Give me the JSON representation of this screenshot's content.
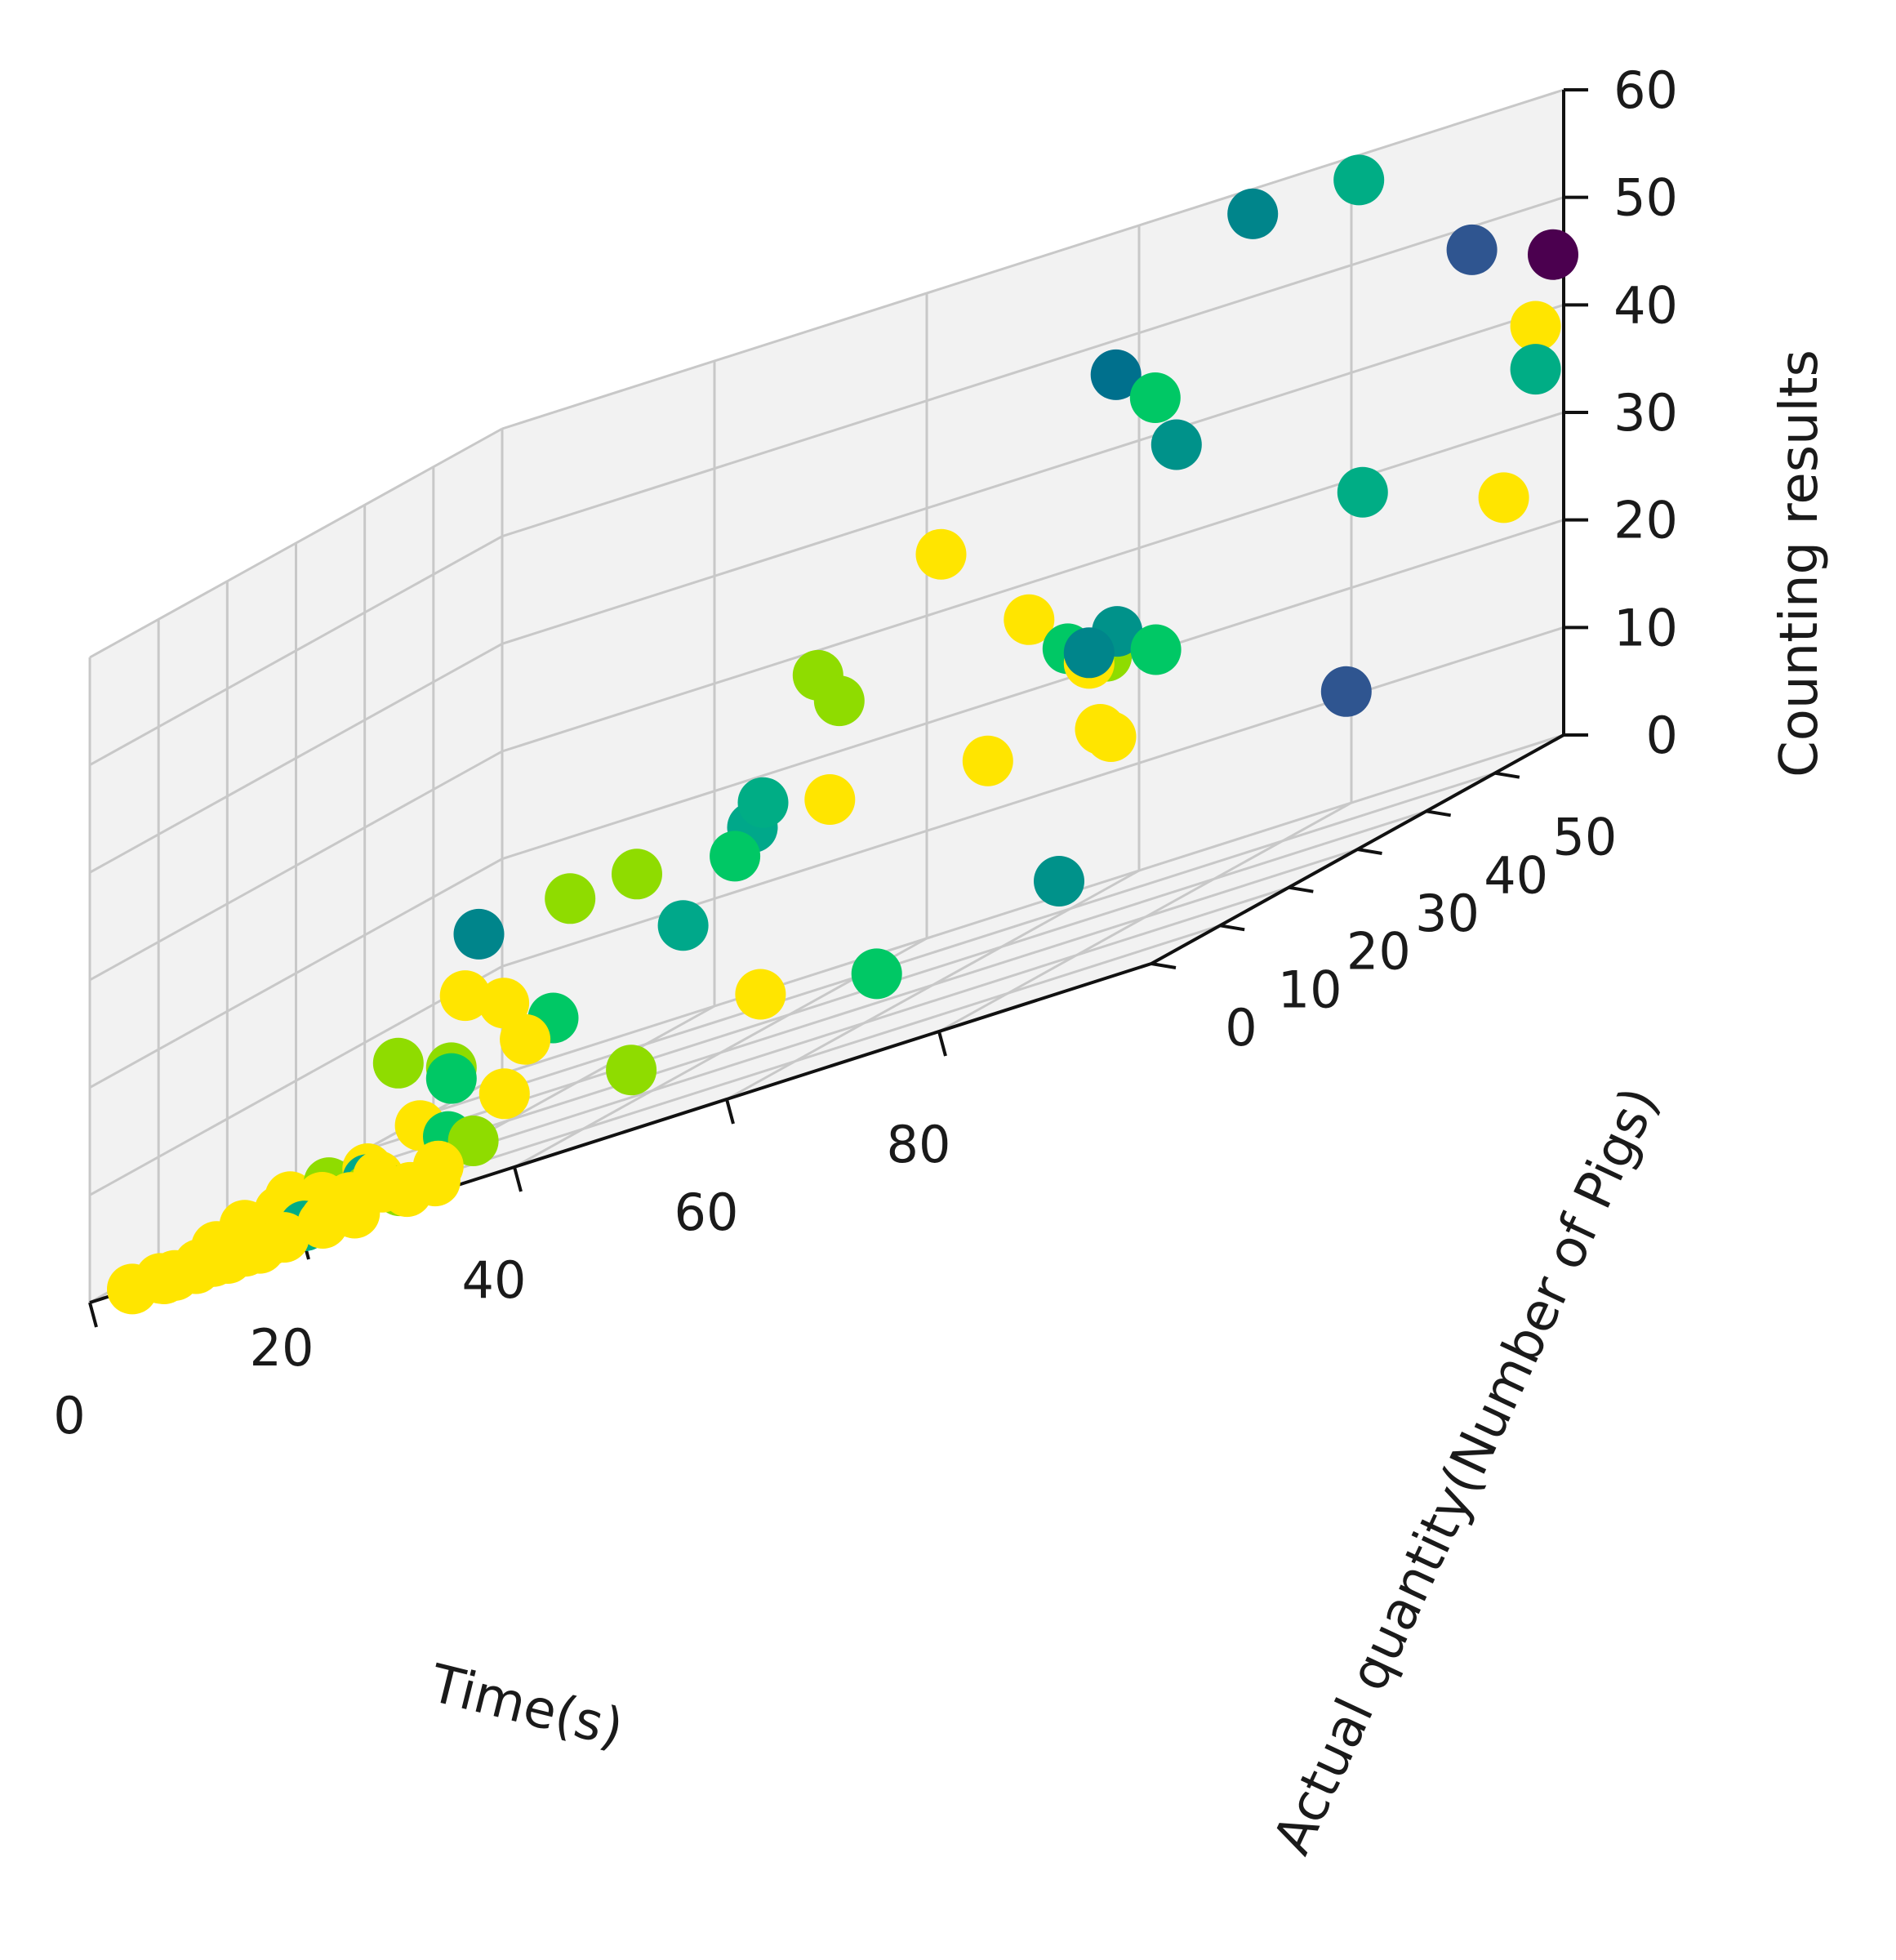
{
  "chart_data": {
    "type": "scatter",
    "projection": "3d",
    "xlabel": "Time(s)",
    "ylabel": "Actual quantity(Number of Pigs)",
    "zlabel": "Counting results",
    "xlim": [
      0,
      100
    ],
    "ylim": [
      0,
      60
    ],
    "zlim": [
      0,
      60
    ],
    "xticks": [
      0,
      20,
      40,
      60,
      80
    ],
    "yticks": [
      0,
      10,
      20,
      30,
      40,
      50
    ],
    "zticks": [
      0,
      10,
      20,
      30,
      40,
      50,
      60
    ],
    "grid": true,
    "pane_color": "#f2f2f2",
    "grid_color": "#c8c8c8",
    "colormap": "viridis",
    "points": [
      {
        "x": 72,
        "y": 58,
        "z": 58,
        "color": "#00858b"
      },
      {
        "x": 82,
        "y": 58,
        "z": 58,
        "color": "#00ad85"
      },
      {
        "x": 63,
        "y": 52,
        "z": 48,
        "color": "#00708d"
      },
      {
        "x": 92,
        "y": 59,
        "z": 48,
        "color": "#2f5590"
      },
      {
        "x": 68,
        "y": 50,
        "z": 45,
        "color": "#00c865"
      },
      {
        "x": 99,
        "y": 60,
        "z": 45,
        "color": "#4b004f"
      },
      {
        "x": 53,
        "y": 42,
        "z": 38,
        "color": "#ffe500"
      },
      {
        "x": 70,
        "y": 50,
        "z": 40,
        "color": "#00928a"
      },
      {
        "x": 98,
        "y": 59,
        "z": 39,
        "color": "#ffe500"
      },
      {
        "x": 98,
        "y": 59,
        "z": 35,
        "color": "#00ad85"
      },
      {
        "x": 44,
        "y": 38,
        "z": 31,
        "color": "#8fdc00"
      },
      {
        "x": 46,
        "y": 38,
        "z": 28,
        "color": "#8fdc00"
      },
      {
        "x": 60,
        "y": 44,
        "z": 29,
        "color": "#ffe500"
      },
      {
        "x": 83,
        "y": 57,
        "z": 29,
        "color": "#00ad85"
      },
      {
        "x": 95,
        "y": 59,
        "z": 24,
        "color": "#ffe500"
      },
      {
        "x": 63,
        "y": 45,
        "z": 25,
        "color": "#00c865"
      },
      {
        "x": 67,
        "y": 46,
        "z": 25,
        "color": "#00928a"
      },
      {
        "x": 65,
        "y": 45,
        "z": 23,
        "color": "#ffe500"
      },
      {
        "x": 66,
        "y": 46,
        "z": 23,
        "color": "#8fdc00"
      },
      {
        "x": 70,
        "y": 47,
        "z": 22,
        "color": "#00c865"
      },
      {
        "x": 65,
        "y": 45,
        "z": 24,
        "color": "#00858b"
      },
      {
        "x": 44,
        "y": 30,
        "z": 22,
        "color": "#00ad85"
      },
      {
        "x": 43,
        "y": 30,
        "z": 20,
        "color": "#00a88a"
      },
      {
        "x": 49,
        "y": 32,
        "z": 20,
        "color": "#ffe500"
      },
      {
        "x": 60,
        "y": 38,
        "z": 18,
        "color": "#ffe500"
      },
      {
        "x": 68,
        "y": 42,
        "z": 17,
        "color": "#ffe500"
      },
      {
        "x": 69,
        "y": 42,
        "z": 16,
        "color": "#ffe500"
      },
      {
        "x": 86,
        "y": 50,
        "z": 12,
        "color": "#2f5590"
      },
      {
        "x": 42,
        "y": 29,
        "z": 18,
        "color": "#00c865"
      },
      {
        "x": 36,
        "y": 24,
        "z": 20,
        "color": "#8fdc00"
      },
      {
        "x": 31,
        "y": 22,
        "z": 20,
        "color": "#8fdc00"
      },
      {
        "x": 25,
        "y": 18,
        "z": 20,
        "color": "#00858b"
      },
      {
        "x": 25,
        "y": 16,
        "z": 15,
        "color": "#ffe500"
      },
      {
        "x": 20,
        "y": 14,
        "z": 11,
        "color": "#8fdc00"
      },
      {
        "x": 28,
        "y": 17,
        "z": 13,
        "color": "#ffe500"
      },
      {
        "x": 41,
        "y": 23,
        "z": 14,
        "color": "#00a88a"
      },
      {
        "x": 32,
        "y": 18,
        "z": 10,
        "color": "#00c865"
      },
      {
        "x": 30,
        "y": 17,
        "z": 9,
        "color": "#ffe500"
      },
      {
        "x": 25,
        "y": 14,
        "z": 9,
        "color": "#8fdc00"
      },
      {
        "x": 25,
        "y": 14,
        "z": 8,
        "color": "#00c865"
      },
      {
        "x": 47,
        "y": 25,
        "z": 5,
        "color": "#ffe500"
      },
      {
        "x": 68,
        "y": 36,
        "z": 5,
        "color": "#00928a"
      },
      {
        "x": 56,
        "y": 28,
        "z": 3,
        "color": "#00c865"
      },
      {
        "x": 24,
        "y": 11,
        "z": 5,
        "color": "#ffe500"
      },
      {
        "x": 30,
        "y": 14,
        "z": 5,
        "color": "#ffe500"
      },
      {
        "x": 26,
        "y": 12,
        "z": 3,
        "color": "#00c865"
      },
      {
        "x": 40,
        "y": 17,
        "z": 3,
        "color": "#8fdc00"
      },
      {
        "x": 29,
        "y": 11,
        "z": 2,
        "color": "#8fdc00"
      },
      {
        "x": 15,
        "y": 6,
        "z": 3,
        "color": "#ffe500"
      },
      {
        "x": 18,
        "y": 7,
        "z": 3,
        "color": "#8fdc00"
      },
      {
        "x": 21,
        "y": 8,
        "z": 3,
        "color": "#ffe500"
      },
      {
        "x": 21,
        "y": 8,
        "z": 2,
        "color": "#00a88a"
      },
      {
        "x": 22,
        "y": 8,
        "z": 2,
        "color": "#ffe500"
      },
      {
        "x": 21,
        "y": 8,
        "z": 1,
        "color": "#8fdc00"
      },
      {
        "x": 14,
        "y": 6,
        "z": 2,
        "color": "#ffe500"
      },
      {
        "x": 18,
        "y": 6,
        "z": 1,
        "color": "#8fdc00"
      },
      {
        "x": 17,
        "y": 5,
        "z": 0,
        "color": "#00ad85"
      },
      {
        "x": 12,
        "y": 4,
        "z": 2,
        "color": "#ffe500"
      },
      {
        "x": 24,
        "y": 8,
        "z": 0,
        "color": "#8fdc00"
      },
      {
        "x": 25,
        "y": 8,
        "z": 0,
        "color": "#ffe500"
      },
      {
        "x": 10,
        "y": 3,
        "z": 1,
        "color": "#ffe500"
      },
      {
        "x": 13,
        "y": 4,
        "z": 1,
        "color": "#ffe500"
      },
      {
        "x": 16,
        "y": 5,
        "z": 1,
        "color": "#ffe500"
      },
      {
        "x": 18,
        "y": 6,
        "z": 2,
        "color": "#ffe500"
      },
      {
        "x": 20,
        "y": 7,
        "z": 1,
        "color": "#ffe500"
      },
      {
        "x": 23,
        "y": 7,
        "z": 1,
        "color": "#ffe500"
      },
      {
        "x": 27,
        "y": 9,
        "z": 1,
        "color": "#ffe500"
      },
      {
        "x": 26,
        "y": 6,
        "z": 0,
        "color": "#ffe500"
      },
      {
        "x": 28,
        "y": 7,
        "z": 0,
        "color": "#ffe500"
      },
      {
        "x": 19,
        "y": 5,
        "z": 0,
        "color": "#ffe500"
      },
      {
        "x": 15,
        "y": 3,
        "z": 0,
        "color": "#ffe500"
      },
      {
        "x": 12,
        "y": 2,
        "z": 0,
        "color": "#ffe500"
      },
      {
        "x": 9,
        "y": 2,
        "z": 0,
        "color": "#ffe500"
      },
      {
        "x": 6,
        "y": 1,
        "z": 0,
        "color": "#ffe500"
      },
      {
        "x": 4,
        "y": 0,
        "z": 0,
        "color": "#ffe500"
      },
      {
        "x": 8,
        "y": 0,
        "z": 0,
        "color": "#ffe500"
      },
      {
        "x": 11,
        "y": 1,
        "z": 0,
        "color": "#ffe500"
      },
      {
        "x": 14,
        "y": 1,
        "z": 0,
        "color": "#ffe500"
      },
      {
        "x": 17,
        "y": 2,
        "z": 0,
        "color": "#ffe500"
      },
      {
        "x": 20,
        "y": 3,
        "z": 0,
        "color": "#ffe500"
      },
      {
        "x": 23,
        "y": 3,
        "z": 0,
        "color": "#ffe500"
      },
      {
        "x": 16,
        "y": 0,
        "z": 0,
        "color": "#ffe500"
      },
      {
        "x": 13,
        "y": 0,
        "z": 0,
        "color": "#ffe500"
      },
      {
        "x": 10,
        "y": 0,
        "z": 0,
        "color": "#ffe500"
      },
      {
        "x": 7,
        "y": 0,
        "z": 0,
        "color": "#ffe500"
      }
    ]
  }
}
